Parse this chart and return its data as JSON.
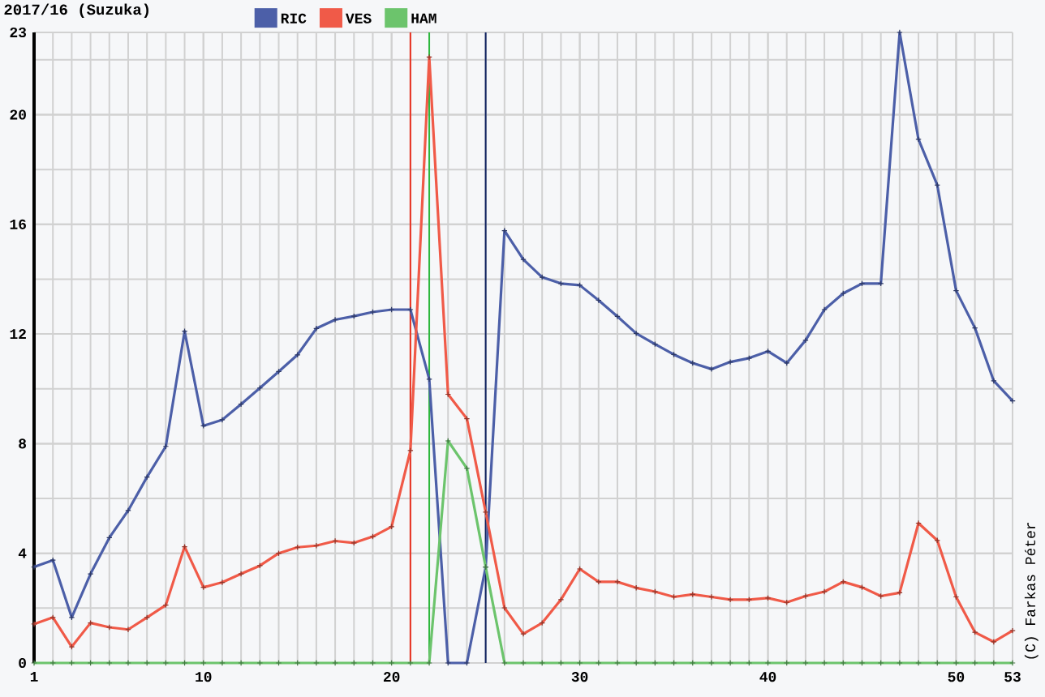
{
  "chart_data": {
    "type": "line",
    "title": "2017/16 (Suzuka)",
    "x": [
      1,
      2,
      3,
      4,
      5,
      6,
      7,
      8,
      9,
      10,
      11,
      12,
      13,
      14,
      15,
      16,
      17,
      18,
      19,
      20,
      21,
      22,
      23,
      24,
      25,
      26,
      27,
      28,
      29,
      30,
      31,
      32,
      33,
      34,
      35,
      36,
      37,
      38,
      39,
      40,
      41,
      42,
      43,
      44,
      45,
      46,
      47,
      48,
      49,
      50,
      51,
      52,
      53
    ],
    "series": [
      {
        "name": "RIC",
        "color": "#4c5fa8",
        "values": [
          3.5,
          3.75,
          1.66,
          3.25,
          4.57,
          5.56,
          6.78,
          7.9,
          12.1,
          8.65,
          8.87,
          9.44,
          10.03,
          10.63,
          11.24,
          12.2,
          12.52,
          12.65,
          12.8,
          12.89,
          12.89,
          10.35,
          0,
          0,
          3.5,
          15.77,
          14.72,
          14.07,
          13.84,
          13.78,
          13.23,
          12.64,
          12.02,
          11.63,
          11.25,
          10.94,
          10.72,
          10.98,
          11.12,
          11.37,
          10.94,
          11.77,
          12.89,
          13.48,
          13.84,
          13.84,
          23,
          19.1,
          17.43,
          13.58,
          12.22,
          10.29,
          9.56
        ]
      },
      {
        "name": "VES",
        "color": "#f05a48",
        "values": [
          1.42,
          1.66,
          0.59,
          1.46,
          1.3,
          1.22,
          1.66,
          2.11,
          4.24,
          2.76,
          2.94,
          3.25,
          3.55,
          4.0,
          4.22,
          4.28,
          4.45,
          4.38,
          4.61,
          4.97,
          7.75,
          22.1,
          9.8,
          8.91,
          5.5,
          2.01,
          1.06,
          1.46,
          2.31,
          3.43,
          2.96,
          2.96,
          2.74,
          2.6,
          2.41,
          2.5,
          2.41,
          2.31,
          2.31,
          2.37,
          2.21,
          2.44,
          2.6,
          2.96,
          2.76,
          2.44,
          2.56,
          5.1,
          4.47,
          2.41,
          1.12,
          0.77,
          1.18
        ]
      },
      {
        "name": "HAM",
        "color": "#6cc46c",
        "values": [
          0,
          0,
          0,
          0,
          0,
          0,
          0,
          0,
          0,
          0,
          0,
          0,
          0,
          0,
          0,
          0,
          0,
          0,
          0,
          0,
          0,
          0,
          8.1,
          7.1,
          3.5,
          0,
          0,
          0,
          0,
          0,
          0,
          0,
          0,
          0,
          0,
          0,
          0,
          0,
          0,
          0,
          0,
          0,
          0,
          0,
          0,
          0,
          0,
          0,
          0,
          0,
          0,
          0,
          0
        ]
      }
    ],
    "ref_lines": [
      {
        "axis": "x",
        "value": 21,
        "label": null,
        "color": "#e8301e"
      },
      {
        "axis": "x",
        "value": 22,
        "label": null,
        "color": "#2db83d"
      },
      {
        "axis": "x",
        "value": 25,
        "label": null,
        "color": "#0c1f5e"
      }
    ],
    "xlim": [
      1,
      53
    ],
    "xticks": [
      1,
      10,
      20,
      30,
      40,
      50,
      53
    ],
    "ylim": [
      0,
      23
    ],
    "yticks": [
      0,
      4,
      8,
      12,
      16,
      20,
      23
    ],
    "grid": true,
    "legend": "top",
    "marker": "cross",
    "line_style": "solid",
    "annotations": [
      "(C) Farkas Péter"
    ]
  }
}
